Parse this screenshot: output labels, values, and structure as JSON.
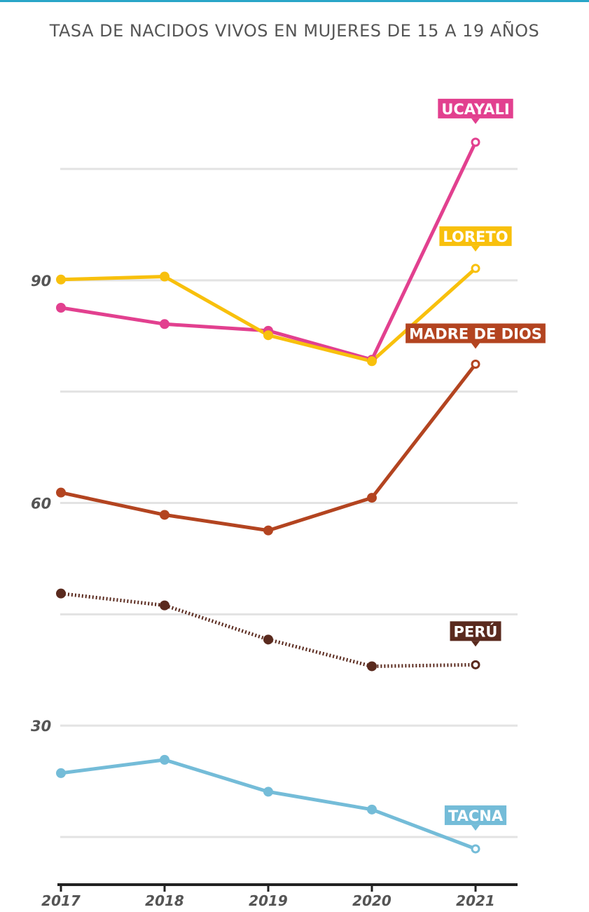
{
  "chart_data": {
    "type": "line",
    "title": "TASA DE NACIDOS VIVOS EN MUJERES DE 15 A 19 AÑOS",
    "xlabel": "",
    "ylabel": "",
    "x": [
      "2017",
      "2018",
      "2019",
      "2020",
      "2021"
    ],
    "ylim": [
      14,
      116
    ],
    "yticks": [
      30,
      60,
      90
    ],
    "gridlines": [
      30,
      45,
      60,
      75,
      90,
      105
    ],
    "grid": true,
    "series": [
      {
        "name": "UCAYALI",
        "color": "#e2408f",
        "dashed": false,
        "values": [
          86.3,
          84.1,
          83.2,
          79.3,
          108.6
        ]
      },
      {
        "name": "LORETO",
        "color": "#f8c00c",
        "dashed": false,
        "values": [
          90.1,
          90.5,
          82.6,
          79.1,
          91.6
        ]
      },
      {
        "name": "MADRE DE DIOS",
        "color": "#b34420",
        "dashed": false,
        "values": [
          61.4,
          58.4,
          56.3,
          60.7,
          78.7
        ]
      },
      {
        "name": "PERÚ",
        "color": "#5a2a1e",
        "dashed": true,
        "values": [
          47.8,
          46.2,
          41.6,
          38.0,
          38.2
        ]
      },
      {
        "name": "TACNA",
        "color": "#74bcd8",
        "dashed": false,
        "values": [
          23.6,
          25.4,
          21.1,
          18.7,
          13.4
        ]
      }
    ]
  }
}
